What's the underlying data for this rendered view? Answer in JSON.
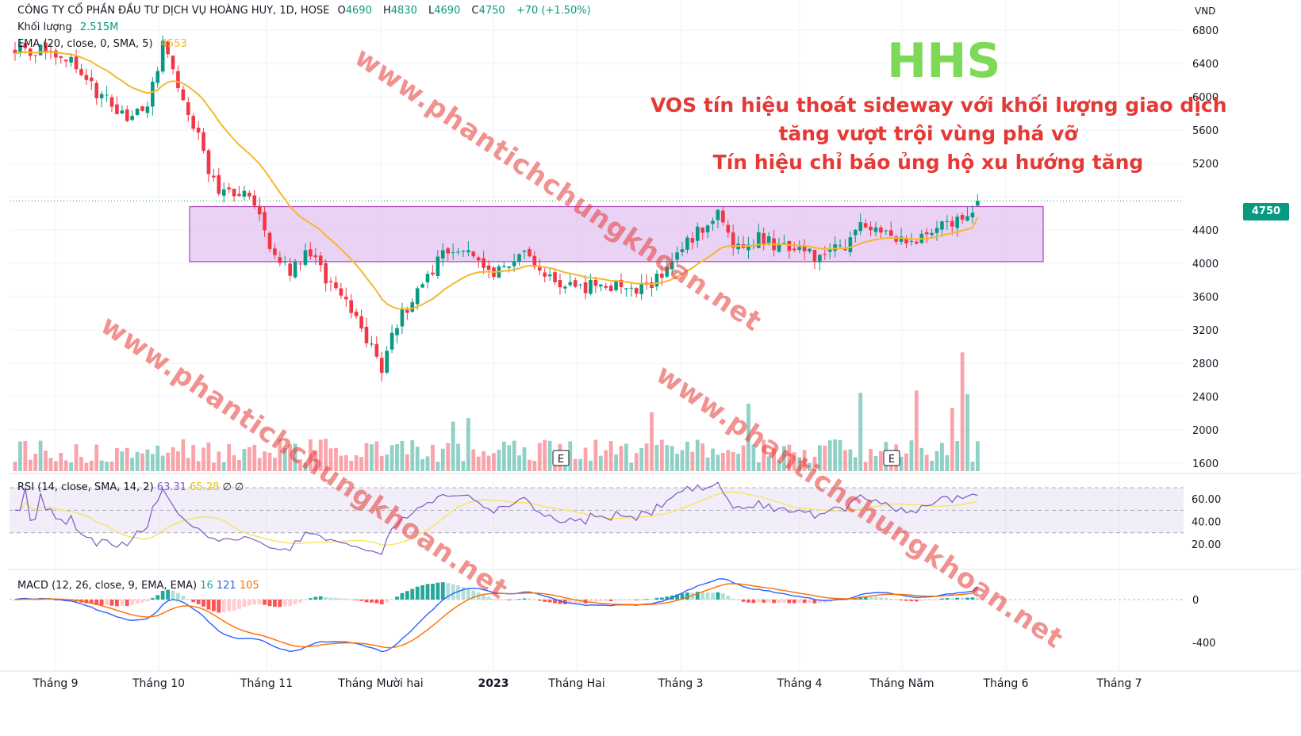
{
  "header": {
    "title": "CÔNG TY CỔ PHẦN ĐẦU TƯ DỊCH VỤ HOÀNG HUY, 1D, HOSE",
    "o_label": "O",
    "o_value": "4690",
    "h_label": "H",
    "h_value": "4830",
    "l_label": "L",
    "l_value": "4690",
    "c_label": "C",
    "c_value": "4750",
    "change": "+70 (+1.50%)",
    "volume_label": "Khối lượng",
    "volume_value": "2.515M",
    "ema_label": "EMA (20, close, 0, SMA, 5)",
    "ema_value": "4553"
  },
  "annotation": {
    "ticker": "HHS",
    "line1": "VOS tín hiệu thoát sideway với khối lượng giao dịch",
    "line2": "tăng vượt trội vùng phá vỡ",
    "line3": "Tín hiệu chỉ báo ủng hộ xu hướng tăng"
  },
  "watermark": "www.phantichchungkhoan.net",
  "price_axis": {
    "currency": "VND",
    "ticks": [
      "6800",
      "6400",
      "6000",
      "5600",
      "5200",
      "4400",
      "4000",
      "3600",
      "3200",
      "2800",
      "2400",
      "2000",
      "1600"
    ],
    "last_price": "4750"
  },
  "rsi": {
    "label": "RSI (14, close, SMA, 14, 2)",
    "value1": "63.31",
    "value2": "65.28",
    "value3": "∅",
    "value4": "∅",
    "ticks": [
      "60.00",
      "40.00",
      "20.00"
    ]
  },
  "macd": {
    "label": "MACD (12, 26, close, 9, EMA, EMA)",
    "hist": "16",
    "macd": "121",
    "signal": "105",
    "ticks": [
      "0",
      "-400"
    ]
  },
  "earnings_marker": "E",
  "x_axis": [
    "Tháng 9",
    "Tháng 10",
    "Tháng 11",
    "Tháng Mười hai",
    "2023",
    "Tháng Hai",
    "Tháng 3",
    "Tháng 4",
    "Tháng Năm",
    "Tháng 6",
    "Tháng 7"
  ],
  "colors": {
    "up": "#089981",
    "down": "#f23645",
    "ema": "#f5b82e",
    "zone_fill": "#e1c3f0",
    "zone_border": "#9c27b0",
    "rsi": "#7e57c2",
    "rsi_ma": "#f7e36a",
    "macd": "#2962ff",
    "signal": "#ff6d00",
    "headline": "#e53935",
    "ticker": "#7ed957"
  },
  "chart_data": {
    "type": "candlestick",
    "symbol": "HHS",
    "timeframe": "1D",
    "ylim": [
      1500,
      6900
    ],
    "breakout_zone": {
      "low": 4020,
      "high": 4680
    },
    "key_points": [
      {
        "date": "2022-08-26",
        "close": 6600
      },
      {
        "date": "2022-09-28",
        "close": 6100
      },
      {
        "date": "2022-10-05",
        "close": 5000
      },
      {
        "date": "2022-10-27",
        "close": 4000
      },
      {
        "date": "2022-11-16",
        "close": 2800
      },
      {
        "date": "2022-12-06",
        "close": 4200
      },
      {
        "date": "2023-01-10",
        "close": 3700
      },
      {
        "date": "2023-02-20",
        "close": 4650
      },
      {
        "date": "2023-03-17",
        "close": 4050
      },
      {
        "date": "2023-05-25",
        "close": 4750
      }
    ],
    "last_candle": {
      "open": 4690,
      "high": 4830,
      "low": 4690,
      "close": 4750,
      "volume": "2.515M"
    },
    "ema20_last": 4553,
    "rsi_last": 63.31,
    "macd_last": {
      "histogram": 16,
      "macd": 121,
      "signal": 105
    }
  }
}
